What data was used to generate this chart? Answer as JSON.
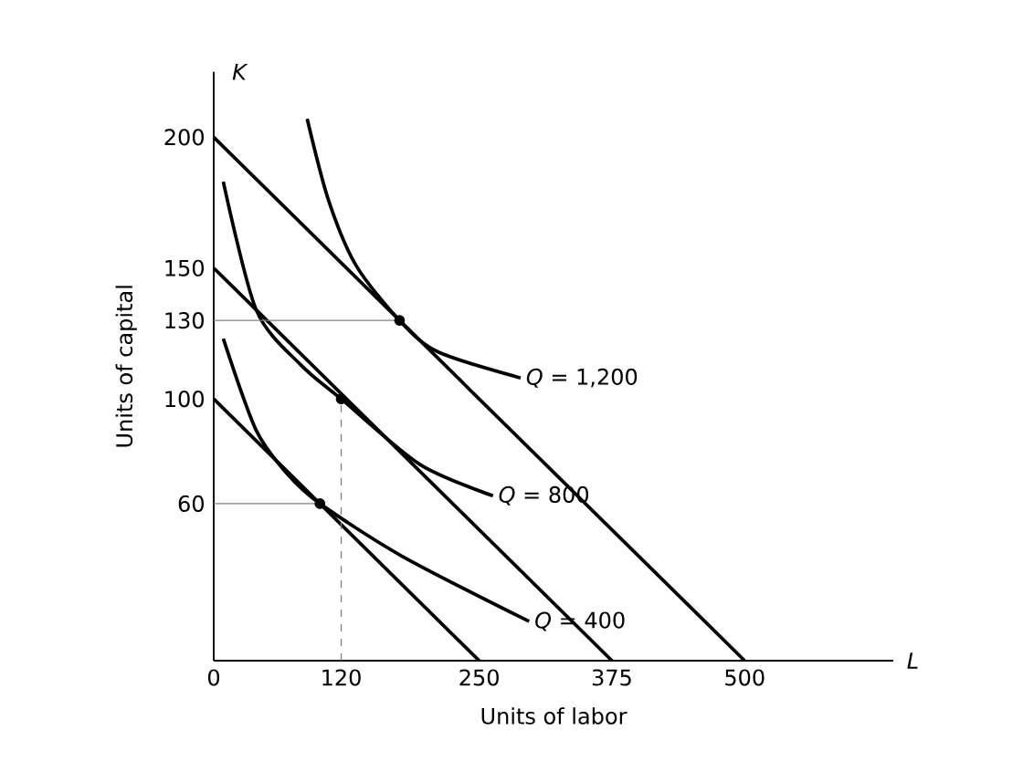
{
  "chart_data": {
    "type": "line",
    "xlabel": "Units of labor",
    "ylabel": "Units of capital",
    "xlim": [
      0,
      640
    ],
    "ylim": [
      0,
      225
    ],
    "xticks": [
      0,
      120,
      250,
      375,
      500
    ],
    "yticks": [
      60,
      100,
      130,
      150,
      200
    ],
    "grid": false,
    "series": [
      {
        "color": "#000000",
        "x": [
          0,
          500
        ],
        "values": [
          200,
          0
        ]
      },
      {
        "color": "#000000",
        "x": [
          0,
          375
        ],
        "values": [
          150,
          0
        ]
      },
      {
        "color": "#000000",
        "x": [
          0,
          250
        ],
        "values": [
          100,
          0
        ]
      },
      {
        "name": "*Q* = 1,200",
        "color": "#000000",
        "x": [
          88,
          108,
          134,
          175,
          211,
          289
        ],
        "values": [
          207,
          176,
          151,
          130,
          118,
          108
        ]
      },
      {
        "name": "*Q* = 800",
        "color": "#000000",
        "x": [
          9,
          40,
          82,
          120,
          194,
          263
        ],
        "values": [
          183,
          134,
          113,
          100,
          75,
          63
        ]
      },
      {
        "name": "*Q* = 400",
        "color": "#000000",
        "x": [
          9,
          40,
          70,
          100,
          177,
          297
        ],
        "values": [
          123,
          88,
          71,
          60,
          40,
          15
        ]
      },
      {
        "color": "#808080",
        "x": [
          0,
          175
        ],
        "values": [
          130,
          130
        ]
      },
      {
        "color": "#808080",
        "x": [
          0,
          100
        ],
        "values": [
          60,
          60
        ]
      },
      {
        "color": "#808080",
        "line_style": "dashed",
        "x": [
          120,
          120
        ],
        "values": [
          0,
          100
        ]
      },
      {
        "type": "scatter",
        "color": "#000000",
        "marker": "circle",
        "x": [
          175,
          120,
          100
        ],
        "values": [
          130,
          100,
          60
        ]
      }
    ],
    "annotations": [
      "*K*",
      "*L*"
    ]
  }
}
